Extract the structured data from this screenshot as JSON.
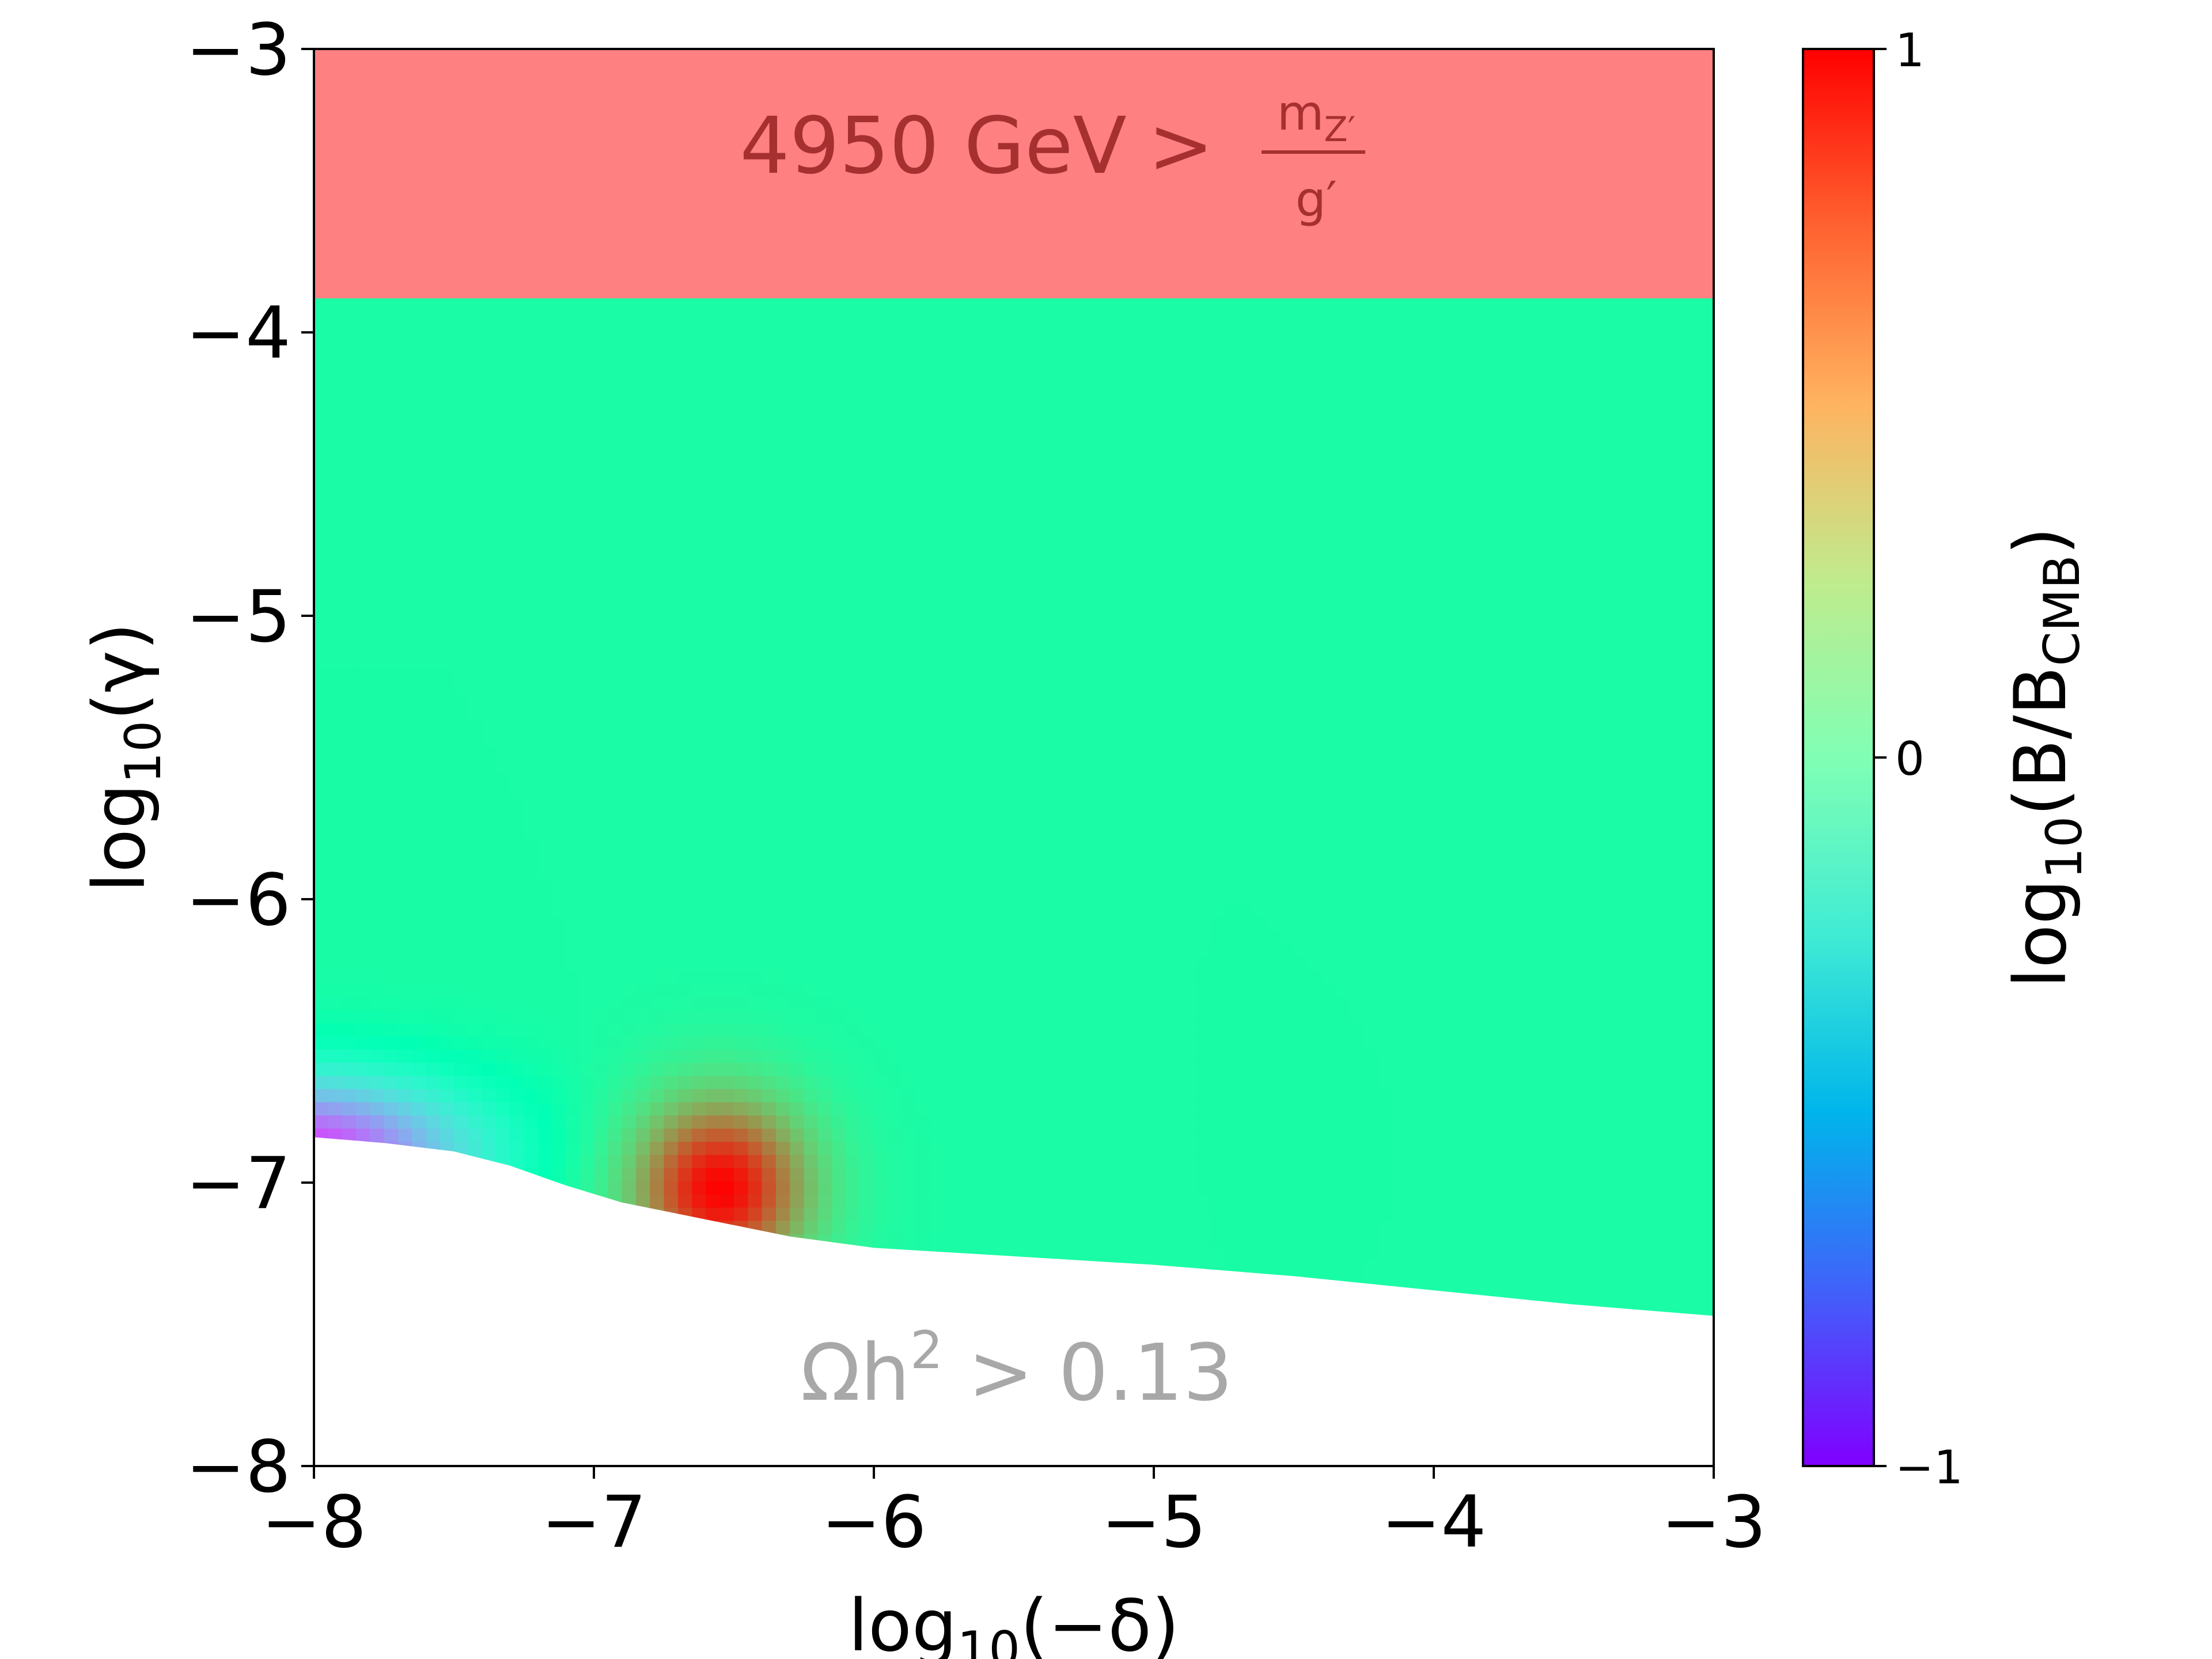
{
  "chart_data": {
    "type": "heatmap",
    "xlabel": {
      "base": "log",
      "sub": "10",
      "arg": "(−δ)"
    },
    "ylabel": {
      "base": "log",
      "sub": "10",
      "arg": "(γ)"
    },
    "xlim": [
      -8,
      -3
    ],
    "ylim": [
      -8,
      -3
    ],
    "xticks": [
      -8,
      -7,
      -6,
      -5,
      -4,
      -3
    ],
    "yticks": [
      -8,
      -7,
      -6,
      -5,
      -4,
      -3
    ],
    "xtick_labels": [
      "−8",
      "−7",
      "−6",
      "−5",
      "−4",
      "−3"
    ],
    "ytick_labels": [
      "−8",
      "−7",
      "−6",
      "−5",
      "−4",
      "−3"
    ],
    "colorbar": {
      "label": {
        "base": "log",
        "sub": "10",
        "open": "(B/B",
        "sub2": "CMB",
        "close": ")"
      },
      "range": [
        -1,
        1
      ],
      "ticks": [
        -1,
        0,
        1
      ],
      "tick_labels": [
        "−1",
        "0",
        "1"
      ],
      "colormap": "rainbow"
    },
    "regions": {
      "excluded_top": {
        "y_min": -3.88,
        "color": "#ff8080",
        "text": "4950 GeV",
        "relation": ">",
        "fraction_num": "m",
        "fraction_num_sub": "Z′",
        "fraction_den": "g′",
        "text_color": "#a63030"
      },
      "excluded_bottom_text": {
        "main": "Ωh",
        "sup": "2",
        "rest": " > 0.13",
        "color": "#a8a8a8"
      }
    },
    "lower_boundary": {
      "x": [
        -8.0,
        -7.75,
        -7.5,
        -7.3,
        -7.1,
        -6.9,
        -6.7,
        -6.5,
        -6.3,
        -6.0,
        -5.5,
        -5.0,
        -4.5,
        -4.0,
        -3.5,
        -3.0
      ],
      "y": [
        -6.84,
        -6.86,
        -6.89,
        -6.94,
        -7.01,
        -7.07,
        -7.11,
        -7.15,
        -7.19,
        -7.23,
        -7.26,
        -7.29,
        -7.33,
        -7.38,
        -7.43,
        -7.47
      ]
    },
    "background_value": 0.1,
    "features": [
      {
        "name": "peak",
        "x": -6.55,
        "y": -7.02,
        "value": 1.0,
        "sigma_x": 0.24,
        "sigma_y": 0.24
      },
      {
        "name": "dip",
        "x": -8.05,
        "y": -6.9,
        "value": -0.85,
        "sigma_x": 0.45,
        "sigma_y": 0.2
      }
    ]
  }
}
